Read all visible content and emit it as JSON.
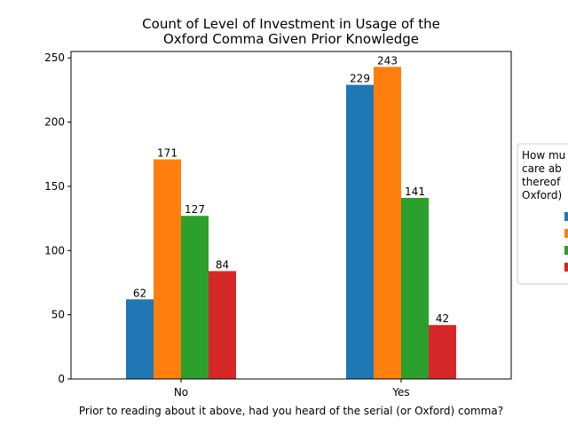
{
  "chart_data": {
    "type": "bar",
    "title_lines": [
      "Count of Level of Investment in Usage of the",
      "Oxford Comma Given Prior Knowledge"
    ],
    "xlabel": "Prior to reading about it above, had you heard of the serial (or Oxford) comma?",
    "ylabel": "",
    "categories": [
      "No",
      "Yes"
    ],
    "ylim": [
      0,
      255
    ],
    "yticks": [
      0,
      50,
      100,
      150,
      200,
      250
    ],
    "grid": false,
    "legend": {
      "placement": "right (clipped)",
      "title_lines": [
        "How mu",
        "care ab",
        "thereof",
        "Oxford)"
      ]
    },
    "series": [
      {
        "values": [
          62,
          229
        ],
        "color": "#1f77b4"
      },
      {
        "values": [
          171,
          243
        ],
        "color": "#ff7f0e"
      },
      {
        "values": [
          127,
          141
        ],
        "color": "#2ca02c"
      },
      {
        "values": [
          84,
          42
        ],
        "color": "#d62728"
      }
    ]
  }
}
